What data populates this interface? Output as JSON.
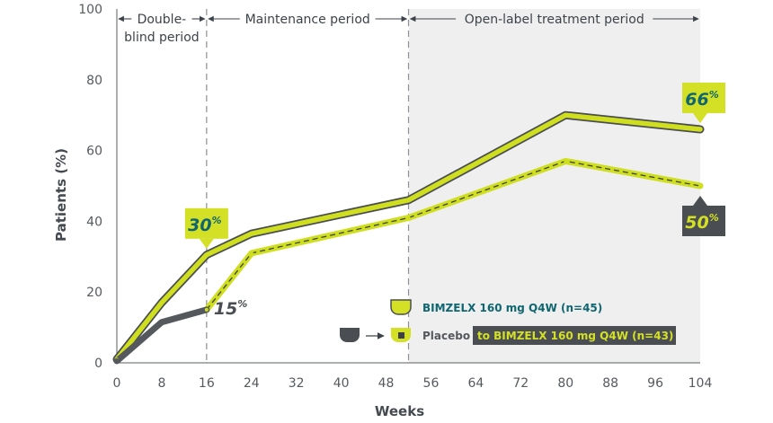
{
  "chart_data": {
    "type": "line",
    "xlabel": "Weeks",
    "ylabel": "Patients (%)",
    "xlim": [
      0,
      104
    ],
    "ylim": [
      0,
      100
    ],
    "xticks": [
      0,
      8,
      16,
      24,
      32,
      40,
      48,
      56,
      64,
      72,
      80,
      88,
      96,
      104
    ],
    "yticks": [
      0,
      20,
      40,
      60,
      80,
      100
    ],
    "grid": false,
    "periods": [
      {
        "label_lines": [
          "Double-",
          "blind period"
        ],
        "start": 0,
        "end": 16
      },
      {
        "label_lines": [
          "Maintenance period"
        ],
        "start": 16,
        "end": 52
      },
      {
        "label_lines": [
          "Open-label treatment period"
        ],
        "start": 52,
        "end": 104,
        "shaded": true
      }
    ],
    "series": [
      {
        "name": "BIMZELX 160 mg Q4W (n=45)",
        "color": "#cfdf1f",
        "outline": "#4a4e52",
        "x": [
          0,
          8,
          16,
          24,
          52,
          80,
          104
        ],
        "y": [
          1,
          17,
          30.5,
          36.5,
          46,
          70,
          66
        ]
      },
      {
        "name": "Placebo",
        "color": "#55595d",
        "x": [
          0,
          8,
          16
        ],
        "y": [
          0.5,
          11.5,
          15
        ]
      },
      {
        "name": "to BIMZELX 160 mg Q4W (n=43)",
        "color": "#cfdf1f",
        "dash": "#3d4145",
        "x": [
          16,
          24,
          52,
          80,
          104
        ],
        "y": [
          15,
          31,
          41,
          57,
          50
        ]
      }
    ],
    "annotations": [
      {
        "text": "30",
        "suffix": "%",
        "x": 16,
        "y": 30.5,
        "style": "box-green"
      },
      {
        "text": "15",
        "suffix": "%",
        "x": 16,
        "y": 15,
        "style": "plain-dark"
      },
      {
        "text": "66",
        "suffix": "%",
        "x": 104,
        "y": 66,
        "style": "box-green"
      },
      {
        "text": "50",
        "suffix": "%",
        "x": 104,
        "y": 50,
        "style": "box-dark"
      }
    ],
    "legend": {
      "position": "bottom-right",
      "items": [
        {
          "label": "BIMZELX 160 mg Q4W (n=45)"
        },
        {
          "label": "Placebo",
          "label2": "to BIMZELX 160 mg Q4W (n=43)"
        }
      ]
    }
  }
}
